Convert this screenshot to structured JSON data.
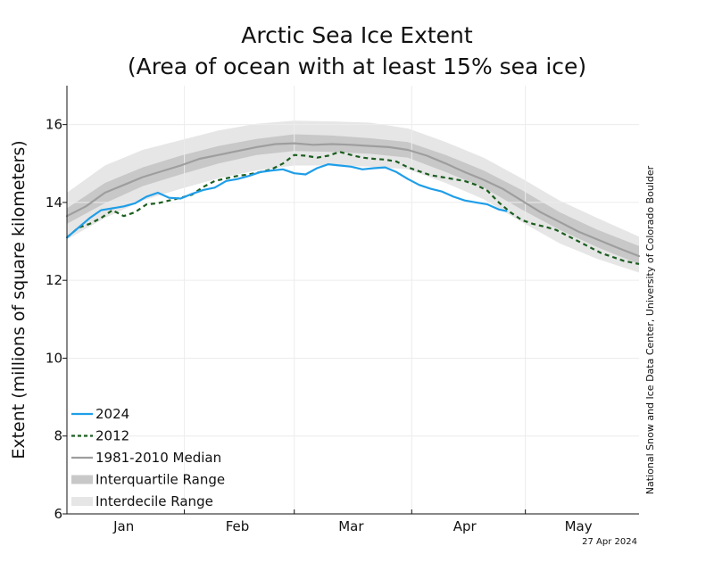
{
  "chart_data": {
    "type": "line",
    "title": "Arctic Sea Ice Extent",
    "subtitle": "(Area of ocean with at least 15% sea ice)",
    "ylabel": "Extent (millions of square kilometers)",
    "xlabel": "",
    "ylim": [
      6,
      17
    ],
    "xlim": [
      0,
      151
    ],
    "yticks": [
      6,
      8,
      10,
      12,
      14,
      16
    ],
    "xticks": [
      {
        "label": "Jan",
        "at": 15
      },
      {
        "label": "Feb",
        "at": 45
      },
      {
        "label": "Mar",
        "at": 75
      },
      {
        "label": "Apr",
        "at": 105
      },
      {
        "label": "May",
        "at": 135
      }
    ],
    "month_boundaries": [
      31,
      60,
      91,
      121
    ],
    "grid": true,
    "legend_position": "bottom-left",
    "credit": "National Snow and Ice Data Center, University of Colorado Boulder",
    "date_stamp": "27 Apr 2024",
    "x_unit": "day of year",
    "series": [
      {
        "name": "2024",
        "style": "solid",
        "color": "#1f9ee8",
        "x": [
          0,
          3,
          6,
          9,
          12,
          15,
          18,
          21,
          24,
          27,
          30,
          33,
          36,
          39,
          42,
          45,
          48,
          51,
          54,
          57,
          60,
          63,
          66,
          69,
          72,
          75,
          78,
          81,
          84,
          87,
          90,
          93,
          96,
          99,
          102,
          105,
          108,
          111,
          114,
          116
        ],
        "y": [
          13.1,
          13.35,
          13.6,
          13.8,
          13.85,
          13.9,
          13.98,
          14.15,
          14.25,
          14.12,
          14.1,
          14.22,
          14.32,
          14.38,
          14.55,
          14.6,
          14.68,
          14.78,
          14.82,
          14.85,
          14.75,
          14.72,
          14.88,
          14.98,
          14.95,
          14.92,
          14.85,
          14.88,
          14.9,
          14.78,
          14.6,
          14.45,
          14.35,
          14.28,
          14.15,
          14.05,
          14.0,
          13.95,
          13.82,
          13.78
        ]
      },
      {
        "name": "2012",
        "style": "dashed",
        "color": "#1b5e20",
        "x": [
          0,
          3,
          6,
          9,
          12,
          15,
          18,
          21,
          24,
          27,
          30,
          33,
          36,
          39,
          42,
          45,
          48,
          51,
          54,
          57,
          60,
          63,
          66,
          69,
          72,
          75,
          78,
          81,
          84,
          87,
          90,
          93,
          96,
          99,
          102,
          105,
          108,
          111,
          114,
          117,
          120,
          123,
          126,
          129,
          132,
          135,
          138,
          141,
          144,
          147,
          151
        ],
        "y": [
          13.1,
          13.35,
          13.45,
          13.6,
          13.8,
          13.65,
          13.75,
          13.95,
          13.98,
          14.05,
          14.12,
          14.2,
          14.4,
          14.55,
          14.62,
          14.68,
          14.72,
          14.78,
          14.85,
          15.0,
          15.22,
          15.2,
          15.15,
          15.2,
          15.3,
          15.22,
          15.15,
          15.12,
          15.1,
          15.05,
          14.9,
          14.8,
          14.7,
          14.65,
          14.6,
          14.55,
          14.45,
          14.3,
          14.0,
          13.75,
          13.55,
          13.45,
          13.38,
          13.3,
          13.15,
          13.0,
          12.85,
          12.7,
          12.6,
          12.5,
          12.42
        ]
      },
      {
        "name": "1981-2010 Median",
        "style": "solid",
        "color": "#9e9e9e",
        "x": [
          0,
          5,
          10,
          15,
          20,
          25,
          30,
          35,
          40,
          45,
          50,
          55,
          60,
          65,
          70,
          75,
          80,
          85,
          90,
          95,
          100,
          105,
          110,
          115,
          120,
          125,
          130,
          135,
          140,
          145,
          151
        ],
        "y": [
          13.65,
          13.9,
          14.25,
          14.45,
          14.65,
          14.8,
          14.95,
          15.12,
          15.22,
          15.32,
          15.42,
          15.5,
          15.52,
          15.48,
          15.5,
          15.48,
          15.45,
          15.42,
          15.35,
          15.2,
          15.0,
          14.78,
          14.58,
          14.35,
          14.05,
          13.75,
          13.5,
          13.25,
          13.05,
          12.85,
          12.62
        ]
      }
    ],
    "bands": [
      {
        "name": "Interquartile Range",
        "color": "#c8c8c8",
        "x": [
          0,
          10,
          20,
          30,
          40,
          50,
          60,
          70,
          80,
          90,
          100,
          110,
          120,
          130,
          140,
          151
        ],
        "low": [
          13.45,
          13.98,
          14.42,
          14.72,
          15.0,
          15.22,
          15.32,
          15.3,
          15.25,
          15.15,
          14.78,
          14.38,
          13.82,
          13.3,
          12.85,
          12.42
        ],
        "high": [
          13.85,
          14.5,
          14.9,
          15.2,
          15.45,
          15.63,
          15.75,
          15.72,
          15.65,
          15.55,
          15.22,
          14.82,
          14.32,
          13.75,
          13.3,
          12.88
        ]
      },
      {
        "name": "Interdecile Range",
        "color": "#e6e6e6",
        "x": [
          0,
          10,
          20,
          30,
          40,
          50,
          60,
          70,
          80,
          90,
          100,
          110,
          120,
          130,
          140,
          151
        ],
        "low": [
          13.05,
          13.6,
          14.05,
          14.35,
          14.62,
          14.82,
          14.95,
          14.95,
          14.92,
          14.85,
          14.5,
          14.08,
          13.5,
          12.95,
          12.55,
          12.2
        ],
        "high": [
          14.25,
          14.95,
          15.35,
          15.6,
          15.85,
          16.02,
          16.1,
          16.08,
          16.05,
          15.9,
          15.55,
          15.15,
          14.62,
          14.05,
          13.6,
          13.12
        ]
      }
    ],
    "legend": [
      {
        "label": "2024",
        "kind": "line",
        "color": "#1f9ee8",
        "style": "solid"
      },
      {
        "label": "2012",
        "kind": "line",
        "color": "#1b5e20",
        "style": "dashed"
      },
      {
        "label": "1981-2010 Median",
        "kind": "line",
        "color": "#9e9e9e",
        "style": "solid"
      },
      {
        "label": "Interquartile Range",
        "kind": "band",
        "color": "#c8c8c8",
        "style": "solid"
      },
      {
        "label": "Interdecile Range",
        "kind": "band",
        "color": "#e6e6e6",
        "style": "solid"
      }
    ]
  }
}
